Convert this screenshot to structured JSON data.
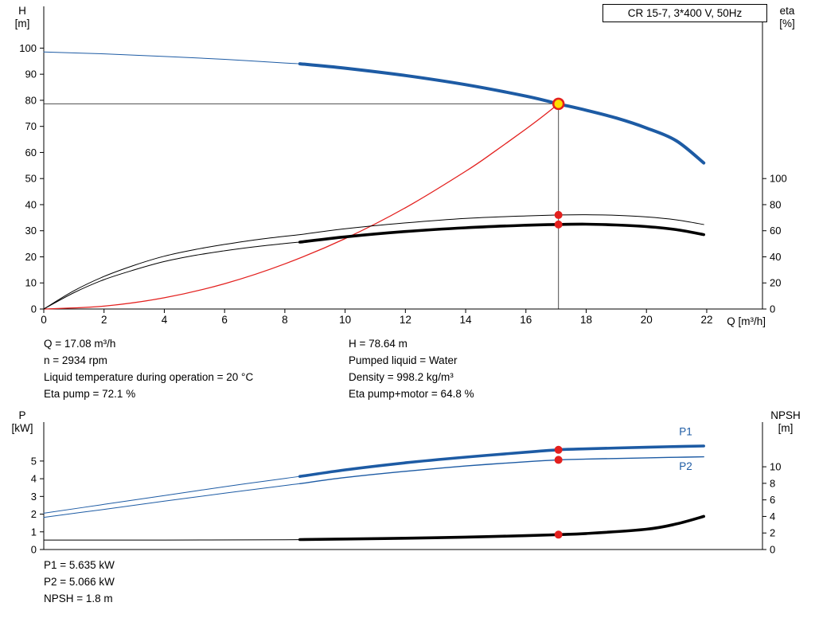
{
  "colors": {
    "blue": "#1d5ba4",
    "red": "#e3201e",
    "black": "#000000",
    "crosshair": "#4d4d4d",
    "duty_fill": "#ffdf00"
  },
  "annotations": {
    "top_left": [
      "Q = 17.08 m³/h",
      "n = 2934 rpm",
      "Liquid temperature during operation = 20 °C",
      "Eta pump = 72.1 %"
    ],
    "top_right": [
      "H = 78.64 m",
      "Pumped liquid = Water",
      "Density = 998.2 kg/m³",
      "Eta pump+motor = 64.8 %"
    ],
    "bottom": [
      "P1 = 5.635 kW",
      "P2 = 5.066 kW",
      "NPSH = 1.8 m"
    ]
  },
  "chart_data": [
    {
      "type": "line",
      "title": "CR 15-7, 3*400 V, 50Hz",
      "x_axis": {
        "label": "Q [m³/h]",
        "min": 0,
        "max": 23.85,
        "ticks": [
          0,
          2,
          4,
          6,
          8,
          10,
          12,
          14,
          16,
          18,
          20,
          22
        ]
      },
      "left_axis": {
        "name": "H",
        "unit": "[m]",
        "min": 0,
        "max": 116,
        "ticks": [
          0,
          10,
          20,
          30,
          40,
          50,
          60,
          70,
          80,
          90,
          100
        ]
      },
      "right_axis": {
        "name": "eta",
        "unit": "[%]",
        "min": 0,
        "max": 232,
        "ticks": [
          0,
          20,
          40,
          60,
          80,
          100
        ]
      },
      "crosshair": {
        "x": 17.08,
        "y": 78.64
      },
      "series": [
        {
          "name": "h-curve",
          "axis": "left",
          "color": "blue",
          "thin": 1,
          "thick": 4,
          "thick_from": 8.5,
          "points": [
            [
              0,
              98.5
            ],
            [
              2,
              97.8
            ],
            [
              4,
              96.8
            ],
            [
              6,
              95.7
            ],
            [
              8,
              94.3
            ],
            [
              8.5,
              94
            ],
            [
              10,
              92.3
            ],
            [
              12,
              89.5
            ],
            [
              14,
              86
            ],
            [
              16,
              81.6
            ],
            [
              17.08,
              78.64
            ],
            [
              18,
              76.2
            ],
            [
              19,
              73.2
            ],
            [
              20,
              69.4
            ],
            [
              21,
              64.4
            ],
            [
              21.9,
              56
            ]
          ]
        },
        {
          "name": "system-curve",
          "axis": "left",
          "color": "red",
          "thin": 1.3,
          "thick": 1.3,
          "thick_from": 99,
          "points": [
            [
              0,
              0
            ],
            [
              2,
              1.1
            ],
            [
              4,
              4.3
            ],
            [
              6,
              9.7
            ],
            [
              8,
              17.3
            ],
            [
              10,
              27
            ],
            [
              12,
              38.8
            ],
            [
              14,
              52.8
            ],
            [
              15,
              60.7
            ],
            [
              16,
              69
            ],
            [
              16.6,
              74.2
            ],
            [
              17.08,
              78.64
            ]
          ]
        },
        {
          "name": "eta-pump-curve",
          "axis": "right",
          "color": "black",
          "thin": 1,
          "thick": 1,
          "thick_from": 99,
          "points": [
            [
              0,
              0
            ],
            [
              1,
              14
            ],
            [
              2,
              25
            ],
            [
              3,
              33.5
            ],
            [
              4,
              40.5
            ],
            [
              5,
              45.5
            ],
            [
              6,
              49.5
            ],
            [
              7,
              53
            ],
            [
              8,
              55.8
            ],
            [
              8.5,
              57
            ],
            [
              10,
              61.5
            ],
            [
              12,
              66
            ],
            [
              14,
              69.5
            ],
            [
              16,
              71.4
            ],
            [
              17.08,
              72.1
            ],
            [
              18,
              72.3
            ],
            [
              19,
              71.8
            ],
            [
              20,
              70.6
            ],
            [
              21,
              68.3
            ],
            [
              21.9,
              64.8
            ]
          ]
        },
        {
          "name": "eta-pump-motor-curve",
          "axis": "right",
          "color": "black",
          "thin": 1,
          "thick": 3.6,
          "thick_from": 8.5,
          "points": [
            [
              0,
              0
            ],
            [
              1,
              12.5
            ],
            [
              2,
              22.5
            ],
            [
              3,
              30
            ],
            [
              4,
              36.4
            ],
            [
              5,
              41
            ],
            [
              6,
              44.6
            ],
            [
              7,
              47.7
            ],
            [
              8,
              50.2
            ],
            [
              8.5,
              51.3
            ],
            [
              10,
              55.3
            ],
            [
              12,
              59.4
            ],
            [
              14,
              62.3
            ],
            [
              16,
              64.2
            ],
            [
              17.08,
              64.8
            ],
            [
              18,
              65
            ],
            [
              19,
              64.4
            ],
            [
              20,
              63.2
            ],
            [
              21,
              60.8
            ],
            [
              21.9,
              57
            ]
          ]
        }
      ],
      "markers": [
        {
          "name": "duty-point-marker",
          "style": "duty",
          "axis": "left",
          "x": 17.08,
          "y": 78.64
        },
        {
          "name": "eta-pump-point",
          "style": "red",
          "axis": "right",
          "x": 17.08,
          "y": 72.1
        },
        {
          "name": "eta-pump-motor-point",
          "style": "red",
          "axis": "right",
          "x": 17.08,
          "y": 64.8
        }
      ]
    },
    {
      "type": "line",
      "title": "",
      "x_axis": {
        "label": "",
        "min": 0,
        "max": 23.85,
        "ticks": []
      },
      "left_axis": {
        "name": "P",
        "unit": "[kW]",
        "min": 0,
        "max": 7.2,
        "ticks": [
          0,
          1,
          2,
          3,
          4,
          5
        ]
      },
      "right_axis": {
        "name": "NPSH",
        "unit": "[m]",
        "min": 0,
        "max": 15.4,
        "ticks": [
          0,
          2,
          4,
          6,
          8,
          10
        ]
      },
      "series": [
        {
          "name": "p1-curve",
          "label": "P1",
          "label_at": [
            21.3,
            6.45
          ],
          "axis": "left",
          "color": "blue",
          "thin": 1,
          "thick": 3.6,
          "thick_from": 8.5,
          "points": [
            [
              0,
              2.05
            ],
            [
              2,
              2.55
            ],
            [
              4,
              3.05
            ],
            [
              6,
              3.55
            ],
            [
              8,
              4.02
            ],
            [
              8.5,
              4.13
            ],
            [
              10,
              4.5
            ],
            [
              12,
              4.9
            ],
            [
              14,
              5.22
            ],
            [
              16,
              5.5
            ],
            [
              17.08,
              5.635
            ],
            [
              18,
              5.69
            ],
            [
              20,
              5.78
            ],
            [
              21,
              5.82
            ],
            [
              21.9,
              5.85
            ]
          ]
        },
        {
          "name": "p2-curve",
          "label": "P2",
          "label_at": [
            21.3,
            4.5
          ],
          "axis": "left",
          "color": "blue",
          "thin": 1,
          "thick": 1.4,
          "thick_from": 8.5,
          "points": [
            [
              0,
              1.82
            ],
            [
              2,
              2.27
            ],
            [
              4,
              2.73
            ],
            [
              6,
              3.18
            ],
            [
              8,
              3.62
            ],
            [
              8.5,
              3.72
            ],
            [
              10,
              4.07
            ],
            [
              12,
              4.42
            ],
            [
              14,
              4.72
            ],
            [
              16,
              4.96
            ],
            [
              17.08,
              5.066
            ],
            [
              18,
              5.11
            ],
            [
              20,
              5.18
            ],
            [
              21,
              5.21
            ],
            [
              21.9,
              5.24
            ]
          ]
        },
        {
          "name": "npsh-curve",
          "axis": "right",
          "color": "black",
          "thin": 1,
          "thick": 3.6,
          "thick_from": 8.5,
          "points": [
            [
              0,
              1.15
            ],
            [
              4,
              1.15
            ],
            [
              8,
              1.18
            ],
            [
              8.5,
              1.2
            ],
            [
              10,
              1.27
            ],
            [
              12,
              1.37
            ],
            [
              14,
              1.5
            ],
            [
              16,
              1.67
            ],
            [
              17.08,
              1.8
            ],
            [
              18,
              1.93
            ],
            [
              20,
              2.45
            ],
            [
              21,
              3.1
            ],
            [
              21.9,
              4
            ]
          ]
        }
      ],
      "markers": [
        {
          "name": "p1-point",
          "style": "red",
          "axis": "left",
          "x": 17.08,
          "y": 5.635
        },
        {
          "name": "p2-point",
          "style": "red",
          "axis": "left",
          "x": 17.08,
          "y": 5.066
        },
        {
          "name": "npsh-point",
          "style": "red",
          "axis": "right",
          "x": 17.08,
          "y": 1.8
        }
      ]
    }
  ]
}
